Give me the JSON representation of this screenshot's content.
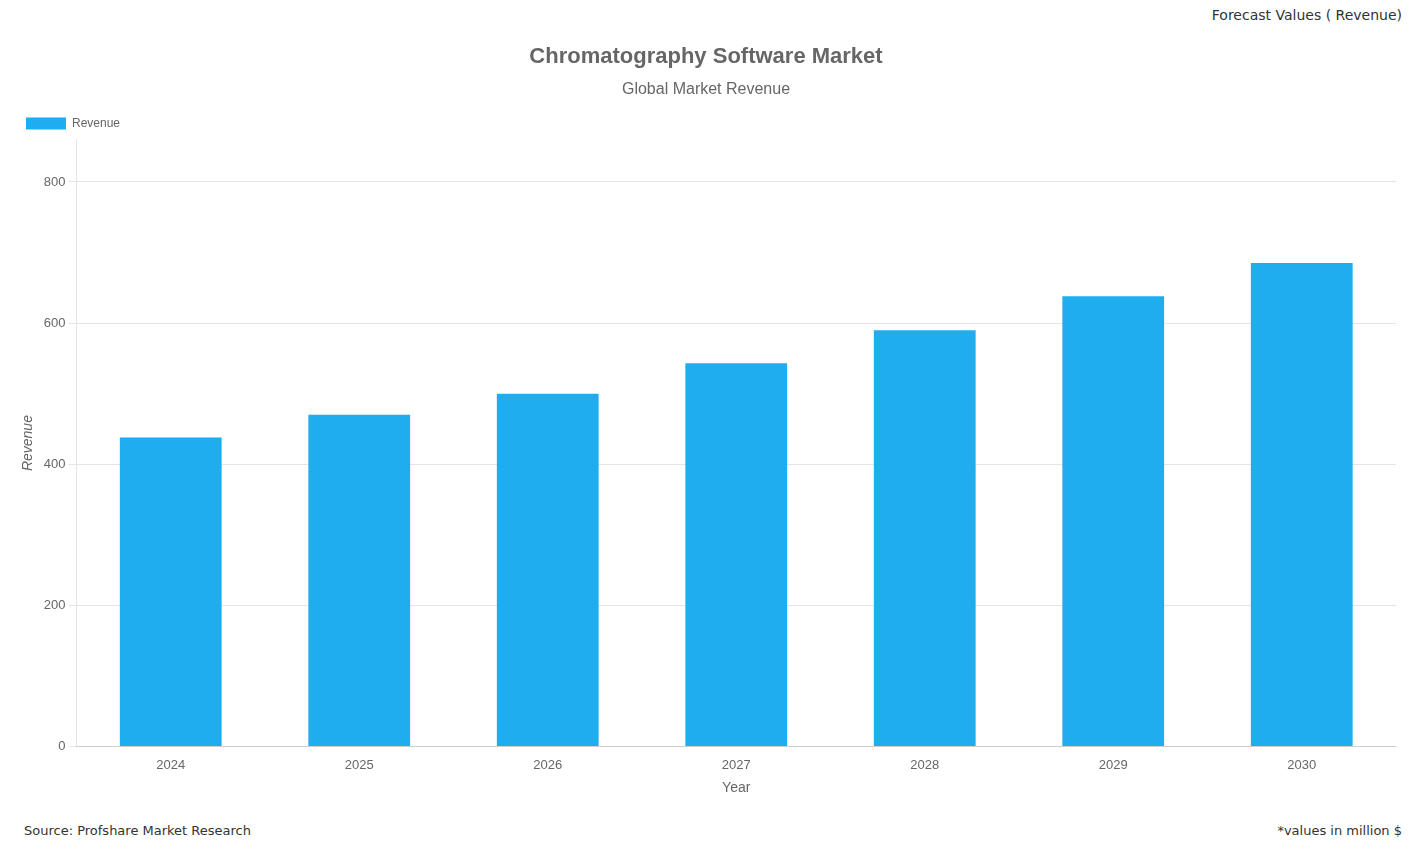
{
  "chart_data": {
    "type": "bar",
    "title": "Chromatography Software Market",
    "subtitle": "Global Market Revenue",
    "annotations": [
      "Forecast Values ( Revenue)",
      "Source: Profshare Market Research",
      "*values in million $"
    ],
    "x_label": "Year",
    "y_label": "Revenue",
    "categories": [
      "2024",
      "2025",
      "2026",
      "2027",
      "2028",
      "2029",
      "2030"
    ],
    "series": [
      {
        "name": "Revenue",
        "color": "#1EAEF0",
        "values": [
          438,
          470,
          500,
          543,
          590,
          638,
          685
        ]
      }
    ],
    "ylim": [
      0,
      860
    ],
    "yticks": [
      0,
      200,
      400,
      600,
      800
    ],
    "grid": true,
    "legend": "upper left"
  }
}
